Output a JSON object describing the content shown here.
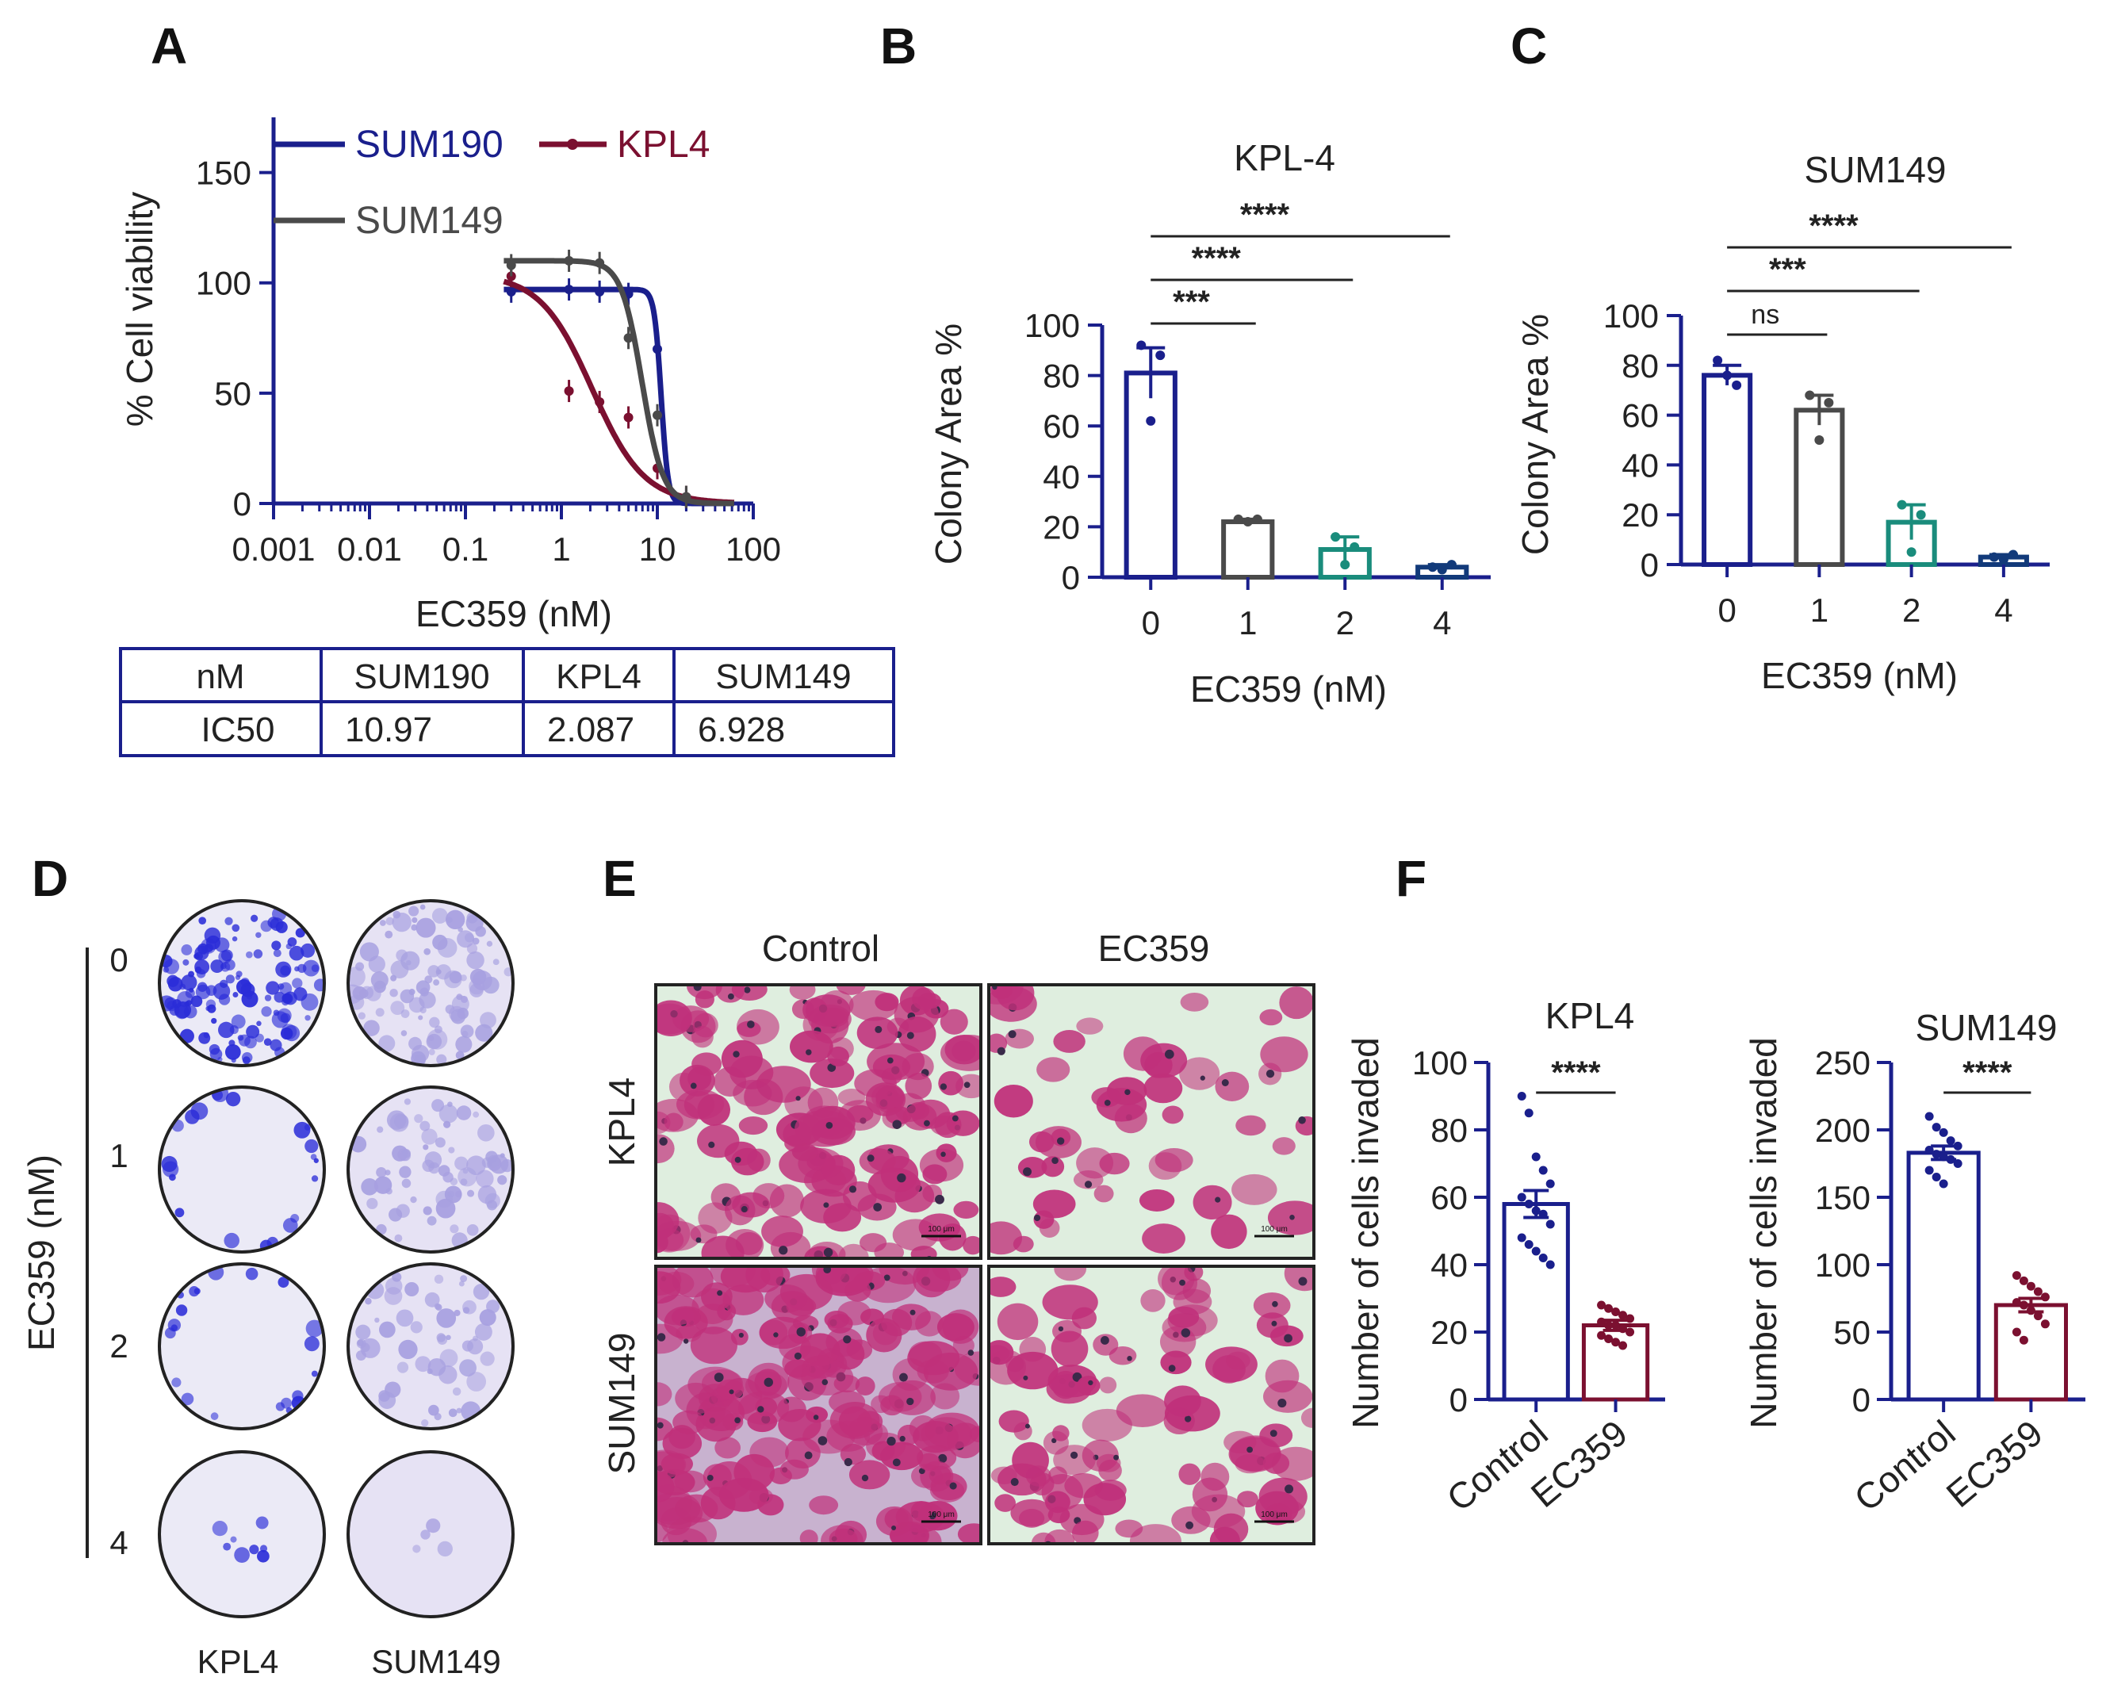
{
  "panels": {
    "A": "A",
    "B": "B",
    "C": "C",
    "D": "D",
    "E": "E",
    "F": "F"
  },
  "colors": {
    "navy": "#1a1f8c",
    "maroon": "#7b1030",
    "grey": "#4a4a4a",
    "teal": "#1a8c7c",
    "darkblue": "#123a7a",
    "stain_dark": "#2a2cd8",
    "stain_light": "#a7a0e0",
    "he_pink": "#c0307a"
  },
  "chart_data": [
    {
      "id": "A",
      "type": "line",
      "xlabel": "EC359 (nM)",
      "ylabel": "% Cell viability",
      "xscale": "log",
      "xlim": [
        0.001,
        100
      ],
      "ylim": [
        0,
        175
      ],
      "xticks": [
        "0.001",
        "0.01",
        "0.1",
        "1",
        "10",
        "100"
      ],
      "yticks": [
        "0",
        "50",
        "100",
        "150"
      ],
      "series": [
        {
          "name": "SUM190",
          "color": "#1a1f8c",
          "top": 97,
          "ic50": 10.97,
          "hill": 12,
          "x": [
            0.3,
            1.2,
            2.5,
            5,
            10,
            20
          ],
          "y": [
            96,
            97,
            96,
            95,
            70,
            2
          ]
        },
        {
          "name": "KPL4",
          "color": "#7b1030",
          "top": 104,
          "ic50": 2.087,
          "hill": 1.6,
          "x": [
            0.3,
            1.2,
            2.5,
            5,
            10,
            20
          ],
          "y": [
            103,
            51,
            46,
            39,
            16,
            3
          ]
        },
        {
          "name": "SUM149",
          "color": "#4a4a4a",
          "top": 110,
          "ic50": 6.928,
          "hill": 4,
          "x": [
            0.3,
            1.2,
            2.5,
            5,
            10,
            20
          ],
          "y": [
            108,
            110,
            109,
            75,
            40,
            3
          ]
        }
      ],
      "ic50_table": {
        "header": [
          "nM",
          "SUM190",
          "KPL4",
          "SUM149"
        ],
        "rows": [
          [
            "IC50",
            "10.97",
            "2.087",
            "6.928"
          ]
        ]
      }
    },
    {
      "id": "B",
      "type": "bar",
      "title": "KPL-4",
      "xlabel": "EC359 (nM)",
      "ylabel": "Colony Area %",
      "categories": [
        "0",
        "1",
        "2",
        "4"
      ],
      "values": [
        81,
        22,
        11,
        4
      ],
      "errors": [
        10,
        1,
        5,
        1
      ],
      "points": [
        [
          92,
          62,
          88
        ],
        [
          23,
          22,
          23
        ],
        [
          16,
          5,
          12
        ],
        [
          4,
          3,
          5
        ]
      ],
      "colors": [
        "#1a1f8c",
        "#4a4a4a",
        "#1a8c7c",
        "#123a7a"
      ],
      "ylim": [
        0,
        100
      ],
      "yticks": [
        "0",
        "20",
        "40",
        "60",
        "80",
        "100"
      ],
      "comparisons": [
        {
          "to": 1,
          "label": "***"
        },
        {
          "to": 2,
          "label": "****"
        },
        {
          "to": 3,
          "label": "****"
        }
      ]
    },
    {
      "id": "C",
      "type": "bar",
      "title": "SUM149",
      "xlabel": "EC359 (nM)",
      "ylabel": "Colony Area %",
      "categories": [
        "0",
        "1",
        "2",
        "4"
      ],
      "values": [
        76,
        62,
        17,
        3
      ],
      "errors": [
        4,
        6,
        7,
        1
      ],
      "points": [
        [
          82,
          76,
          72
        ],
        [
          68,
          50,
          65
        ],
        [
          24,
          5,
          20
        ],
        [
          3,
          2,
          4
        ]
      ],
      "colors": [
        "#1a1f8c",
        "#4a4a4a",
        "#1a8c7c",
        "#123a7a"
      ],
      "ylim": [
        0,
        100
      ],
      "yticks": [
        "0",
        "20",
        "40",
        "60",
        "80",
        "100"
      ],
      "comparisons": [
        {
          "to": 1,
          "label": "ns"
        },
        {
          "to": 2,
          "label": "***"
        },
        {
          "to": 3,
          "label": "****"
        }
      ]
    },
    {
      "id": "F1",
      "type": "bar",
      "title": "KPL4",
      "ylabel": "Number of cells invaded",
      "categories": [
        "Control",
        "EC359"
      ],
      "values": [
        58,
        22
      ],
      "errors": [
        4,
        1.5
      ],
      "ylim": [
        0,
        100
      ],
      "yticks": [
        "0",
        "20",
        "40",
        "60",
        "80",
        "100"
      ],
      "colors": [
        "#1a1f8c",
        "#7b1030"
      ],
      "points": [
        [
          90,
          85,
          72,
          68,
          64,
          60,
          58,
          56,
          55,
          52,
          48,
          46,
          44,
          42,
          40
        ],
        [
          28,
          27,
          26,
          25,
          24,
          23,
          22,
          22,
          21,
          20,
          19,
          18,
          17,
          16
        ]
      ],
      "significance": "****"
    },
    {
      "id": "F2",
      "type": "bar",
      "title": "SUM149",
      "ylabel": "Number of cells invaded",
      "categories": [
        "Control",
        "EC359"
      ],
      "values": [
        183,
        70
      ],
      "errors": [
        5,
        5
      ],
      "ylim": [
        0,
        250
      ],
      "yticks": [
        "0",
        "50",
        "100",
        "150",
        "200",
        "250"
      ],
      "colors": [
        "#1a1f8c",
        "#7b1030"
      ],
      "points": [
        [
          210,
          202,
          198,
          192,
          188,
          185,
          182,
          180,
          178,
          175,
          170,
          165,
          160
        ],
        [
          92,
          88,
          84,
          80,
          76,
          72,
          70,
          66,
          62,
          56,
          50,
          44
        ]
      ],
      "significance": "****"
    }
  ],
  "panel_d": {
    "rows": [
      "0",
      "1",
      "2",
      "4"
    ],
    "cols": [
      "KPL4",
      "SUM149"
    ],
    "axis_label": "EC359 (nM)",
    "density": [
      [
        0.95,
        0.7
      ],
      [
        0.15,
        0.5
      ],
      [
        0.15,
        0.4
      ],
      [
        0.06,
        0.03
      ]
    ]
  },
  "panel_e": {
    "cols": [
      "Control",
      "EC359"
    ],
    "rows": [
      "KPL4",
      "SUM149"
    ],
    "density": [
      [
        0.85,
        0.3
      ],
      [
        0.98,
        0.55
      ]
    ],
    "scale_bar": "100 μm"
  }
}
